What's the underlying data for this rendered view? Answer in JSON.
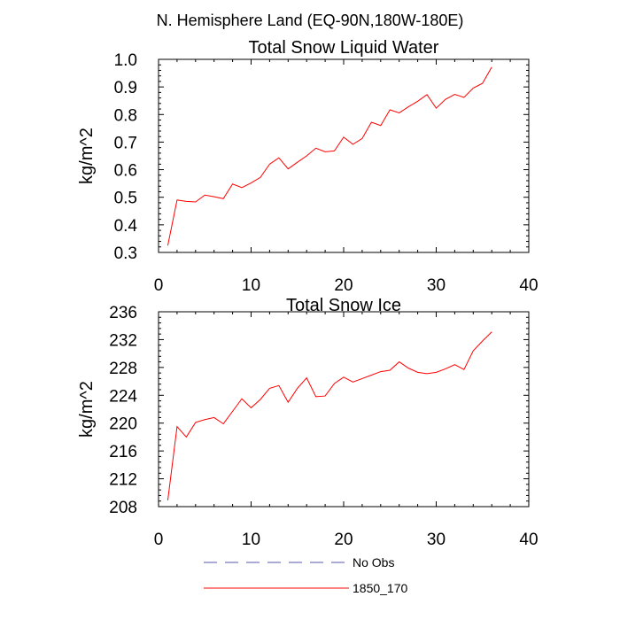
{
  "figure": {
    "suptitle": "N. Hemisphere Land (EQ-90N,180W-180E)"
  },
  "chart_data": [
    {
      "type": "line",
      "title": "Total Snow Liquid Water",
      "xlabel": "",
      "ylabel": "kg/m^2",
      "xlim": [
        0,
        40
      ],
      "ylim": [
        0.3,
        1.0
      ],
      "xticks": [
        0,
        10,
        20,
        30,
        40
      ],
      "xticklabels": [
        "0",
        "10",
        "20",
        "30",
        "40"
      ],
      "yticks": [
        0.3,
        0.4,
        0.5,
        0.6,
        0.7,
        0.8,
        0.9,
        1.0
      ],
      "yticklabels": [
        "0.3",
        "0.4",
        "0.5",
        "0.6",
        "0.7",
        "0.8",
        "0.9",
        "1.0"
      ],
      "grid": false,
      "series": [
        {
          "name": "1850_170",
          "color": "#ff0000",
          "x": [
            1,
            2,
            3,
            4,
            5,
            6,
            7,
            8,
            9,
            10,
            11,
            12,
            13,
            14,
            15,
            16,
            17,
            18,
            19,
            20,
            21,
            22,
            23,
            24,
            25,
            26,
            27,
            28,
            29,
            30,
            31,
            32,
            33,
            34,
            35,
            36
          ],
          "values": [
            0.325,
            0.49,
            0.485,
            0.483,
            0.508,
            0.502,
            0.495,
            0.548,
            0.535,
            0.552,
            0.572,
            0.62,
            0.643,
            0.603,
            0.627,
            0.65,
            0.678,
            0.665,
            0.668,
            0.718,
            0.692,
            0.713,
            0.772,
            0.76,
            0.817,
            0.806,
            0.828,
            0.848,
            0.872,
            0.823,
            0.855,
            0.873,
            0.862,
            0.896,
            0.913,
            0.972
          ]
        }
      ]
    },
    {
      "type": "line",
      "title": "Total Snow Ice",
      "xlabel": "",
      "ylabel": "kg/m^2",
      "xlim": [
        0,
        40
      ],
      "ylim": [
        208,
        236
      ],
      "xticks": [
        0,
        10,
        20,
        30,
        40
      ],
      "xticklabels": [
        "0",
        "10",
        "20",
        "30",
        "40"
      ],
      "yticks": [
        208,
        212,
        216,
        220,
        224,
        228,
        232,
        236
      ],
      "yticklabels": [
        "208",
        "212",
        "216",
        "220",
        "224",
        "228",
        "232",
        "236"
      ],
      "grid": false,
      "series": [
        {
          "name": "1850_170",
          "color": "#ff0000",
          "x": [
            1,
            2,
            3,
            4,
            5,
            6,
            7,
            8,
            9,
            10,
            11,
            12,
            13,
            14,
            15,
            16,
            17,
            18,
            19,
            20,
            21,
            22,
            23,
            24,
            25,
            26,
            27,
            28,
            29,
            30,
            31,
            32,
            33,
            34,
            35,
            36
          ],
          "values": [
            208.9,
            219.5,
            218.0,
            220.1,
            220.5,
            220.8,
            219.9,
            221.7,
            223.5,
            222.2,
            223.4,
            225.0,
            225.4,
            223.0,
            225.0,
            226.5,
            223.8,
            223.9,
            225.7,
            226.6,
            225.9,
            226.4,
            226.9,
            227.4,
            227.6,
            228.8,
            227.9,
            227.3,
            227.1,
            227.3,
            227.8,
            228.4,
            227.7,
            230.4,
            231.8,
            233.1
          ]
        }
      ]
    }
  ],
  "legend": {
    "placement": "bottom",
    "entries": [
      {
        "label": "No Obs",
        "color": "#5555aa",
        "style": "dashed"
      },
      {
        "label": "1850_170",
        "color": "#ff0000",
        "style": "solid"
      }
    ]
  }
}
